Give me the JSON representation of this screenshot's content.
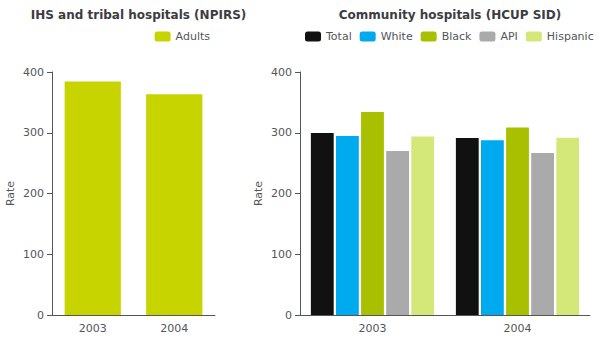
{
  "chart_data": [
    {
      "type": "bar",
      "title": "IHS and tribal hospitals (NPIRS)",
      "ylabel": "Rate",
      "categories": [
        "2003",
        "2004"
      ],
      "series": [
        {
          "name": "Adults",
          "color": "#c8d400",
          "values": [
            384.4,
            363.3
          ]
        }
      ],
      "ylim": [
        0,
        400
      ],
      "yticks": [
        0,
        100,
        200,
        300,
        400
      ],
      "grid": false,
      "legend": "upper right"
    },
    {
      "type": "bar",
      "title": "Community hospitals (HCUP SID)",
      "ylabel": "Rate",
      "categories": [
        "2003",
        "2004"
      ],
      "series": [
        {
          "name": "Total",
          "color": "#111111",
          "values": [
            299.6,
            291.5
          ]
        },
        {
          "name": "White",
          "color": "#00aaee",
          "values": [
            294.6,
            287.8
          ]
        },
        {
          "name": "Black",
          "color": "#a8c000",
          "values": [
            334.2,
            308.7
          ]
        },
        {
          "name": "API",
          "color": "#aaaaaa",
          "values": [
            269.8,
            266.8
          ]
        },
        {
          "name": "Hispanic",
          "color": "#d4e87a",
          "values": [
            293.8,
            291.8
          ]
        }
      ],
      "ylim": [
        0,
        400
      ],
      "yticks": [
        0,
        100,
        200,
        300,
        400
      ],
      "grid": false,
      "legend": "upper left"
    }
  ]
}
